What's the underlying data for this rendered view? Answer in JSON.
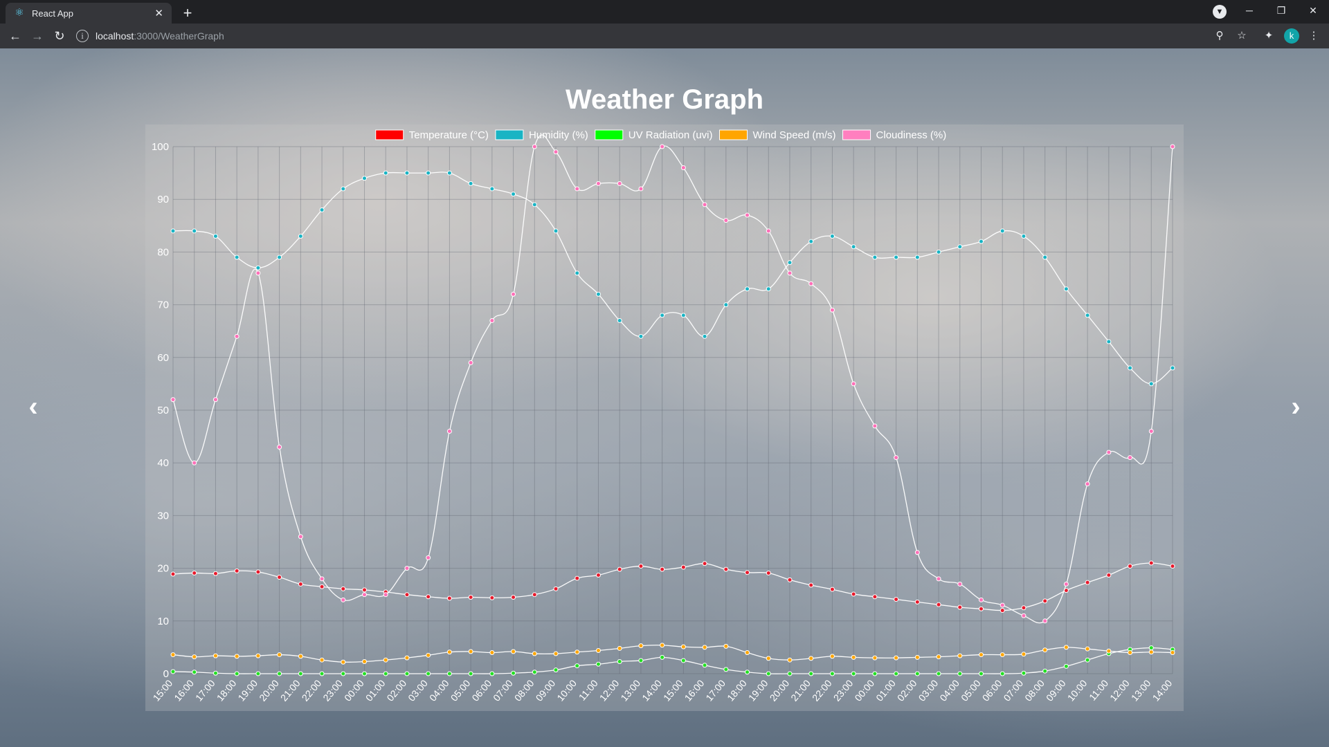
{
  "browser": {
    "tab_title": "React App",
    "url_host": "localhost",
    "url_path": ":3000/WeatherGraph",
    "profile_initial": "k"
  },
  "page": {
    "title": "Weather Graph"
  },
  "icons": {
    "tab_favicon": "react-icon",
    "prev": "chevron-left-icon",
    "next": "chevron-right-icon"
  },
  "chart_data": {
    "type": "line",
    "title": "",
    "xlabel": "",
    "ylabel": "",
    "ylim": [
      0,
      100
    ],
    "yticks": [
      0,
      10,
      20,
      30,
      40,
      50,
      60,
      70,
      80,
      90,
      100
    ],
    "grid": true,
    "legend_position": "top",
    "x": [
      "15:00",
      "16:00",
      "17:00",
      "18:00",
      "19:00",
      "20:00",
      "21:00",
      "22:00",
      "23:00",
      "00:00",
      "01:00",
      "02:00",
      "03:00",
      "04:00",
      "05:00",
      "06:00",
      "07:00",
      "08:00",
      "09:00",
      "10:00",
      "11:00",
      "12:00",
      "13:00",
      "14:00",
      "15:00",
      "16:00",
      "17:00",
      "18:00",
      "19:00",
      "20:00",
      "21:00",
      "22:00",
      "23:00",
      "00:00",
      "01:00",
      "02:00",
      "03:00",
      "04:00",
      "05:00",
      "06:00",
      "07:00",
      "08:00",
      "09:00",
      "10:00",
      "11:00",
      "12:00",
      "13:00",
      "14:00"
    ],
    "series": [
      {
        "name": "Temperature (°C)",
        "legend_color": "#ff0000",
        "point_color": "#e8192c",
        "values": [
          18.9,
          19.1,
          19.0,
          19.5,
          19.3,
          18.3,
          17.0,
          16.5,
          16.1,
          15.9,
          15.5,
          15.0,
          14.6,
          14.3,
          14.5,
          14.4,
          14.5,
          15.0,
          16.1,
          18.1,
          18.7,
          19.8,
          20.4,
          19.8,
          20.2,
          20.9,
          19.8,
          19.2,
          19.1,
          17.8,
          16.8,
          16.0,
          15.1,
          14.6,
          14.1,
          13.6,
          13.1,
          12.6,
          12.3,
          12.0,
          12.5,
          13.8,
          15.8,
          17.3,
          18.7,
          20.4,
          21.0,
          20.4
        ]
      },
      {
        "name": "Humidity (%)",
        "legend_color": "#19b4c4",
        "point_color": "#19b4c4",
        "values": [
          84,
          84,
          83,
          79,
          77,
          79,
          83,
          88,
          92,
          94,
          95,
          95,
          95,
          95,
          93,
          92,
          91,
          89,
          84,
          76,
          72,
          67,
          64,
          68,
          68,
          64,
          70,
          73,
          73,
          78,
          82,
          83,
          81,
          79,
          79,
          79,
          80,
          81,
          82,
          84,
          83,
          79,
          73,
          68,
          63,
          58,
          55,
          58
        ]
      },
      {
        "name": "UV Radiation (uvi)",
        "legend_color": "#00ff00",
        "point_color": "#22e022",
        "values": [
          0.4,
          0.3,
          0.1,
          0,
          0,
          0,
          0,
          0,
          0,
          0,
          0,
          0,
          0,
          0,
          0,
          0,
          0.1,
          0.3,
          0.7,
          1.5,
          1.8,
          2.3,
          2.5,
          3.1,
          2.5,
          1.6,
          0.8,
          0.3,
          0,
          0,
          0,
          0,
          0,
          0,
          0,
          0,
          0,
          0,
          0,
          0,
          0.1,
          0.5,
          1.4,
          2.6,
          3.8,
          4.6,
          4.9,
          4.6
        ]
      },
      {
        "name": "Wind Speed (m/s)",
        "legend_color": "#ffa500",
        "point_color": "#ffa500",
        "values": [
          3.6,
          3.2,
          3.4,
          3.3,
          3.4,
          3.6,
          3.3,
          2.6,
          2.2,
          2.3,
          2.6,
          3.0,
          3.5,
          4.1,
          4.2,
          4.0,
          4.2,
          3.8,
          3.8,
          4.1,
          4.4,
          4.8,
          5.3,
          5.4,
          5.1,
          5.0,
          5.2,
          4.0,
          2.9,
          2.6,
          2.9,
          3.3,
          3.1,
          3.0,
          3.0,
          3.1,
          3.2,
          3.4,
          3.6,
          3.6,
          3.7,
          4.5,
          5.0,
          4.7,
          4.3,
          4.0,
          4.1,
          4.0
        ]
      },
      {
        "name": "Cloudiness (%)",
        "legend_color": "#ff7fbf",
        "point_color": "#ff6fb8",
        "values": [
          52,
          40,
          52,
          64,
          76,
          43,
          26,
          18,
          14,
          15,
          15,
          20,
          22,
          46,
          59,
          67,
          72,
          100,
          99,
          92,
          93,
          93,
          92,
          100,
          96,
          89,
          86,
          87,
          84,
          76,
          74,
          69,
          55,
          47,
          41,
          23,
          18,
          17,
          14,
          13,
          11,
          10,
          17,
          36,
          42,
          41,
          46,
          100
        ]
      }
    ]
  }
}
